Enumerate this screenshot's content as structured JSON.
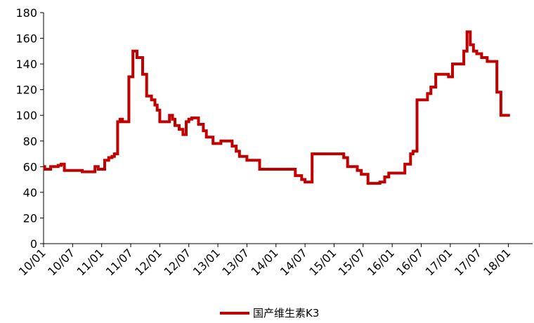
{
  "chart_data": {
    "type": "line",
    "title": "",
    "xlabel": "",
    "ylabel": "",
    "ylim": [
      0,
      180
    ],
    "yticks": [
      0,
      20,
      40,
      60,
      80,
      100,
      120,
      140,
      160,
      180
    ],
    "xlim": [
      "2010-01",
      "2018-06"
    ],
    "xticks": [
      "10/01",
      "10/07",
      "11/01",
      "11/07",
      "12/01",
      "12/07",
      "13/01",
      "13/07",
      "14/01",
      "14/07",
      "15/01",
      "15/07",
      "16/01",
      "16/07",
      "17/01",
      "17/07",
      "18/01"
    ],
    "grid": false,
    "legend": "bottom",
    "step": true,
    "series": [
      {
        "name": "国产维生素K3",
        "color": "#c00000",
        "points": [
          [
            "2010-01-01",
            60
          ],
          [
            "2010-01-08",
            58
          ],
          [
            "2010-02-15",
            60
          ],
          [
            "2010-04-01",
            61
          ],
          [
            "2010-04-20",
            62
          ],
          [
            "2010-05-10",
            57
          ],
          [
            "2010-08-15",
            57
          ],
          [
            "2010-09-01",
            56
          ],
          [
            "2010-11-01",
            56
          ],
          [
            "2010-11-20",
            60
          ],
          [
            "2010-12-10",
            58
          ],
          [
            "2011-01-10",
            58
          ],
          [
            "2011-01-20",
            65
          ],
          [
            "2011-02-15",
            67
          ],
          [
            "2011-03-05",
            68
          ],
          [
            "2011-03-20",
            70
          ],
          [
            "2011-04-10",
            95
          ],
          [
            "2011-04-25",
            97
          ],
          [
            "2011-05-10",
            95
          ],
          [
            "2011-06-10",
            95
          ],
          [
            "2011-06-20",
            130
          ],
          [
            "2011-07-15",
            150
          ],
          [
            "2011-08-10",
            145
          ],
          [
            "2011-09-15",
            132
          ],
          [
            "2011-10-10",
            115
          ],
          [
            "2011-11-10",
            112
          ],
          [
            "2011-12-01",
            108
          ],
          [
            "2011-12-15",
            104
          ],
          [
            "2012-01-01",
            95
          ],
          [
            "2012-02-05",
            95
          ],
          [
            "2012-03-01",
            100
          ],
          [
            "2012-03-20",
            97
          ],
          [
            "2012-04-05",
            92
          ],
          [
            "2012-05-01",
            89
          ],
          [
            "2012-05-25",
            85
          ],
          [
            "2012-06-15",
            95
          ],
          [
            "2012-07-01",
            97
          ],
          [
            "2012-07-20",
            98
          ],
          [
            "2012-09-01",
            93
          ],
          [
            "2012-10-01",
            88
          ],
          [
            "2012-10-20",
            83
          ],
          [
            "2012-12-01",
            78
          ],
          [
            "2013-01-20",
            80
          ],
          [
            "2013-02-25",
            80
          ],
          [
            "2013-03-30",
            76
          ],
          [
            "2013-04-25",
            72
          ],
          [
            "2013-05-15",
            68
          ],
          [
            "2013-07-01",
            65
          ],
          [
            "2013-09-20",
            58
          ],
          [
            "2014-04-10",
            58
          ],
          [
            "2014-05-01",
            53
          ],
          [
            "2014-06-10",
            50
          ],
          [
            "2014-07-01",
            48
          ],
          [
            "2014-08-15",
            70
          ],
          [
            "2015-02-10",
            70
          ],
          [
            "2015-03-01",
            67
          ],
          [
            "2015-03-25",
            60
          ],
          [
            "2015-05-25",
            57
          ],
          [
            "2015-06-20",
            54
          ],
          [
            "2015-08-01",
            47
          ],
          [
            "2015-10-15",
            48
          ],
          [
            "2015-11-15",
            52
          ],
          [
            "2015-12-10",
            55
          ],
          [
            "2016-03-20",
            62
          ],
          [
            "2016-04-25",
            70
          ],
          [
            "2016-05-10",
            72
          ],
          [
            "2016-06-05",
            112
          ],
          [
            "2016-08-10",
            117
          ],
          [
            "2016-09-01",
            122
          ],
          [
            "2016-10-01",
            132
          ],
          [
            "2016-12-20",
            130
          ],
          [
            "2017-01-15",
            140
          ],
          [
            "2017-03-25",
            150
          ],
          [
            "2017-04-15",
            165
          ],
          [
            "2017-05-05",
            155
          ],
          [
            "2017-05-25",
            150
          ],
          [
            "2017-06-15",
            148
          ],
          [
            "2017-07-15",
            145
          ],
          [
            "2017-08-20",
            142
          ],
          [
            "2017-10-20",
            118
          ],
          [
            "2017-11-15",
            100
          ],
          [
            "2017-12-15",
            100
          ]
        ]
      }
    ]
  }
}
